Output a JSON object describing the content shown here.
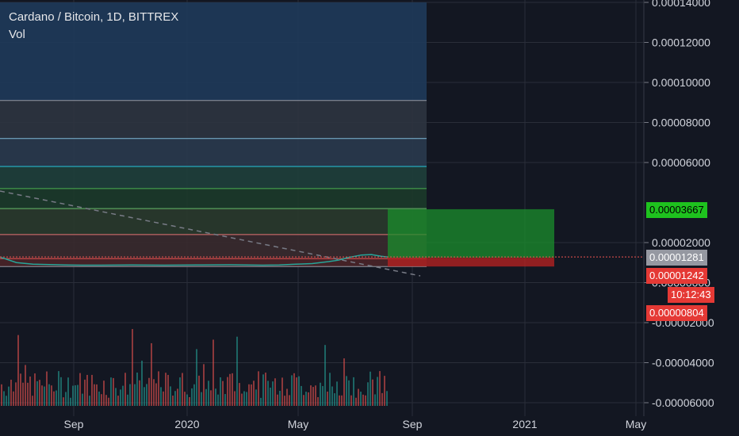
{
  "header": {
    "symbol_title": "Cardano / Bitcoin, 1D, BITTREX",
    "volume_label": "Vol"
  },
  "colors": {
    "background": "#131722",
    "axis_text": "#d1d4dc",
    "grid": "#2a2e39",
    "up": "#26a69a",
    "down": "#ef5350",
    "profit_zone": "#1b8f2c",
    "stop_zone": "#b22222",
    "last_price_tag": "#9598a1",
    "dashed_trend": "#787b86"
  },
  "price_tags": {
    "target": "0.00003667",
    "last": "0.00001281",
    "entry": "0.00001242",
    "countdown": "10:12:43",
    "stop": "0.00000804"
  },
  "chart_data": {
    "type": "candlestick",
    "title": "Cardano / Bitcoin, 1D, BITTREX",
    "y_axis": {
      "ylim": [
        -6e-05,
        0.00014
      ],
      "ticks": [
        "0.00014000",
        "0.00012000",
        "0.00010000",
        "0.00008000",
        "0.00006000",
        "0.00002000",
        "0.00000000",
        "-0.00002000",
        "-0.00004000",
        "-0.00006000"
      ]
    },
    "x_axis": {
      "ticks": [
        "Sep",
        "2020",
        "May",
        "Sep",
        "2021",
        "May"
      ]
    },
    "grid": true,
    "price_series": {
      "description_x": "months from Aug 2019",
      "x": [
        0,
        0.5,
        1,
        1.5,
        2,
        2.5,
        3,
        4,
        5,
        6,
        7,
        8,
        8.5,
        9,
        9.5,
        10,
        10.3,
        10.6,
        11,
        11.3,
        11.6,
        11.8
      ],
      "close": [
        1.28e-05,
        1e-05,
        9.2e-06,
        9e-06,
        8.8e-06,
        8.7e-06,
        8.7e-06,
        8.8e-06,
        8.7e-06,
        8.8e-06,
        8.9e-06,
        8.7e-06,
        8.8e-06,
        9.2e-06,
        9.5e-06,
        1.05e-05,
        1.12e-05,
        1.25e-05,
        1.38e-05,
        1.4e-05,
        1.32e-05,
        1.28e-05
      ]
    },
    "fib_levels": [
      9.1e-05,
      7.2e-05,
      5.8e-05,
      4.7e-05,
      3.7e-05,
      2.4e-05,
      1.2e-05,
      8e-06
    ],
    "position": {
      "type": "long",
      "entry": 1.242e-05,
      "target": 3.667e-05,
      "stop": 8.04e-06
    },
    "volume_max_note": "volume histogram in lower pane"
  }
}
